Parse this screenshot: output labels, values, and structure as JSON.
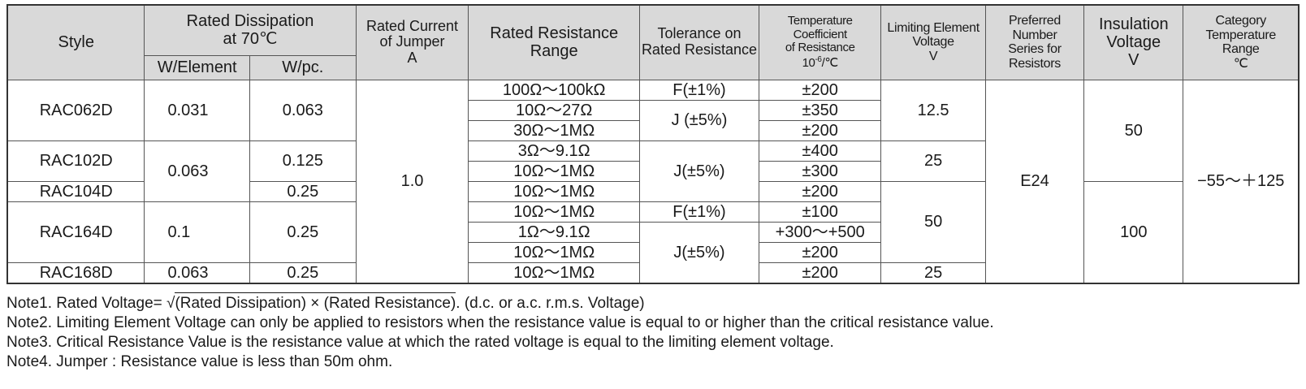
{
  "headers": {
    "style": "Style",
    "rated_dissipation": "Rated Dissipation\nat 70℃",
    "w_element": "W/Element",
    "w_pc": "W/pc.",
    "rated_current": "Rated Current\nof Jumper\nA",
    "rated_resistance": "Rated Resistance\nRange",
    "tolerance": "Tolerance on\nRated Resistance",
    "temp_coeff_line1": "Temperature Coefficient",
    "temp_coeff_line2": "of Resistance",
    "temp_coeff_unit_base": "10",
    "temp_coeff_unit_exp": "-6",
    "temp_coeff_unit_suffix": "/℃",
    "limiting_voltage": "Limiting Element\nVoltage\nV",
    "preferred_series": "Preferred Number\nSeries for\nResistors",
    "insulation": "Insulation\nVoltage\nV",
    "category_temp": "Category Temperature\nRange\n℃"
  },
  "cells": {
    "style_rac062d": "RAC062D",
    "style_rac102d": "RAC102D",
    "style_rac104d": "RAC104D",
    "style_rac164d": "RAC164D",
    "style_rac168d": "RAC168D",
    "we_0031": "0.031",
    "we_0063_a": "0.063",
    "we_01": "0.1",
    "we_0063_b": "0.063",
    "wpc_0063": "0.063",
    "wpc_0125": "0.125",
    "wpc_025_a": "0.25",
    "wpc_025_b": "0.25",
    "wpc_025_c": "0.25",
    "jumper_current": "1.0",
    "res_1": "100Ω～100kΩ",
    "res_2": "10Ω～27Ω",
    "res_3": "30Ω～1MΩ",
    "res_4": "3Ω～9.1Ω",
    "res_5": "10Ω～1MΩ",
    "res_6": "10Ω～1MΩ",
    "res_7": "10Ω～1MΩ",
    "res_8": "1Ω～9.1Ω",
    "res_9": "10Ω～1MΩ",
    "res_10": "10Ω～1MΩ",
    "tol_f1": "F(±1%)",
    "tol_j1": "J (±5%)",
    "tol_j2": "J(±5%)",
    "tol_f2": "F(±1%)",
    "tol_j3": "J(±5%)",
    "tcr_1": "±200",
    "tcr_2": "±350",
    "tcr_3": "±200",
    "tcr_4": "±400",
    "tcr_5": "±300",
    "tcr_6": "±200",
    "tcr_7": "±100",
    "tcr_8": "+300～+500",
    "tcr_9": "±200",
    "tcr_10": "±200",
    "lev_125": "12.5",
    "lev_25_a": "25",
    "lev_50": "50",
    "lev_25_b": "25",
    "series_e24": "E24",
    "ins_50": "50",
    "ins_100": "100",
    "cat_temp": "−55～＋125"
  },
  "notes": {
    "note1_prefix": "Note1. Rated Voltage= ",
    "note1_radical": "(Rated Dissipation) × (Rated Resistance)",
    "note1_suffix": ". (d.c. or a.c. r.m.s. Voltage)",
    "note2": "Note2. Limiting Element Voltage can only be applied to resistors when the resistance value is equal to or higher than the critical resistance value.",
    "note3": "Note3. Critical Resistance Value is the resistance value at which the rated voltage is equal to the limiting element voltage.",
    "note4": "Note4. Jumper : Resistance value is less than 50m ohm."
  }
}
